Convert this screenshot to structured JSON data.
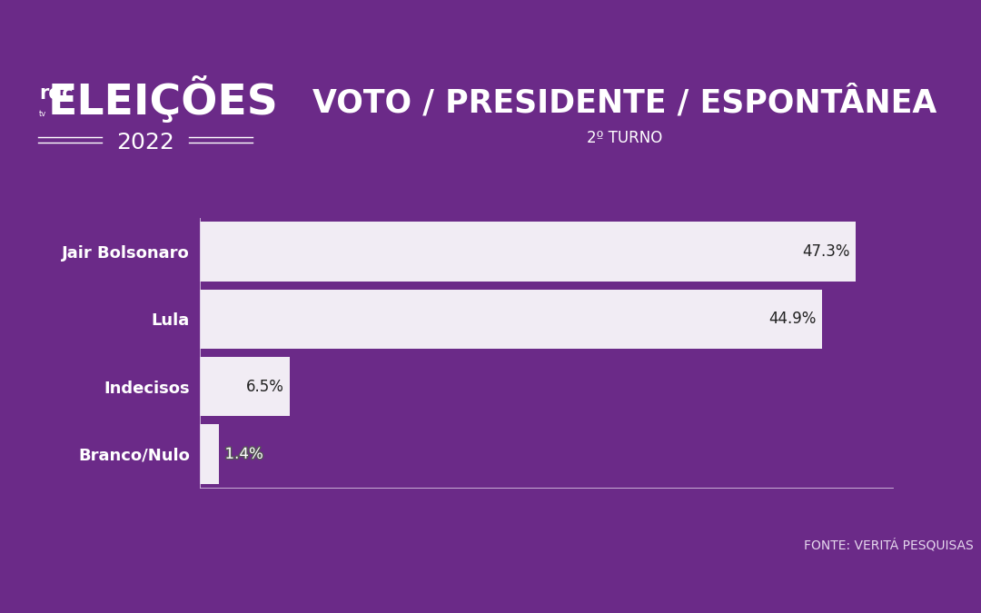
{
  "chart_data": {
    "type": "bar",
    "orientation": "horizontal",
    "title": "VOTO / PRESIDENTE / ESPONTÂNEA",
    "subtitle": "2º TURNO",
    "categories": [
      "Jair Bolsonaro",
      "Lula",
      "Indecisos",
      "Branco/Nulo"
    ],
    "values": [
      47.3,
      44.9,
      6.5,
      1.4
    ],
    "value_labels": [
      "47.3%",
      "44.9%",
      "6.5%",
      "1.4%"
    ],
    "data_labels": true,
    "color": "#f1ecf4",
    "xlim": [
      0,
      50
    ],
    "xticks": [],
    "grid": false,
    "tick_labels": "y",
    "source": "FONTE: VERITÁ PESQUISAS",
    "logo": {
      "brand": "rdc",
      "brand_sub": "tv",
      "title": "ELEIÇÕES",
      "year": "2022"
    }
  }
}
